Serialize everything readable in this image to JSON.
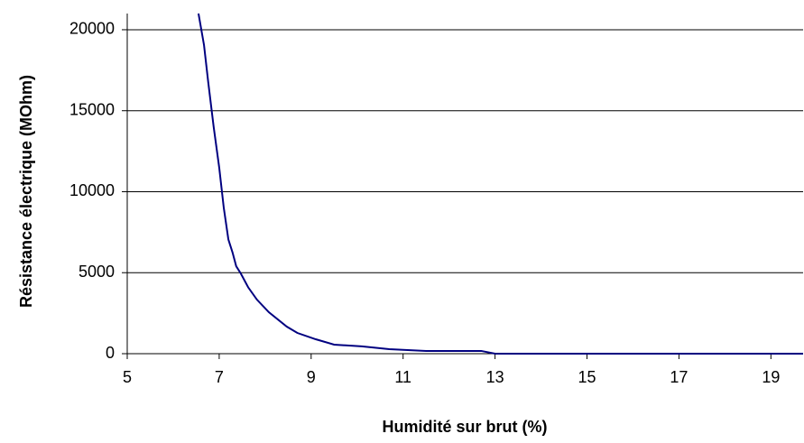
{
  "chart_data": {
    "type": "line",
    "x_label": "Humidité sur brut (%)",
    "y_label": "Résistance électrique (MOhm)",
    "x": [
      6.55,
      6.67,
      6.76,
      6.88,
      7.0,
      7.1,
      7.2,
      7.29,
      7.37,
      7.47,
      7.63,
      7.82,
      8.08,
      8.47,
      8.7,
      9.1,
      9.5,
      10.1,
      10.7,
      11.5,
      12.7,
      13.0,
      15,
      17,
      19,
      19.7
    ],
    "series": [
      {
        "color": "#000080",
        "values": [
          21000,
          19050,
          16800,
          14000,
          11500,
          9000,
          7050,
          6250,
          5400,
          4950,
          4100,
          3340,
          2560,
          1670,
          1280,
          890,
          560,
          450,
          280,
          170,
          170,
          0,
          0,
          0,
          0,
          0
        ]
      }
    ],
    "xlim": [
      5,
      19.7
    ],
    "xticks": [
      5,
      7,
      9,
      11,
      13,
      15,
      17,
      19
    ],
    "ylim": [
      0,
      21000
    ],
    "yticks": [
      0,
      5000,
      10000,
      15000,
      20000
    ],
    "grid": true
  }
}
